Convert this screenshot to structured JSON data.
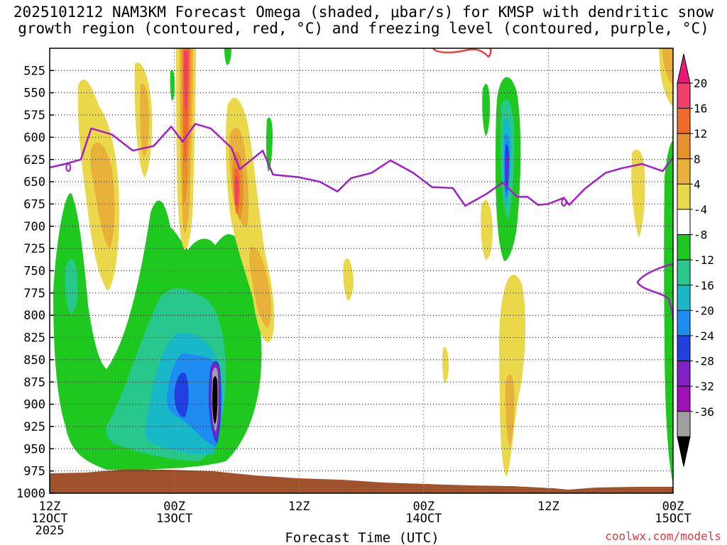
{
  "chart_data": {
    "type": "heatmap",
    "title_line1": "2025101212 NAM3KM Forecast Omega (shaded, μbar/s) for KMSP with dendritic snow",
    "title_line2": "growth region (contoured, red, °C) and freezing level (contoured, purple, °C)",
    "xlabel": "Forecast Time (UTC)",
    "credit": "coolwx.com/models",
    "y_axis": {
      "units": "hPa",
      "range": [
        500,
        1000
      ],
      "ticks": [
        "525",
        "550",
        "575",
        "600",
        "625",
        "650",
        "675",
        "700",
        "725",
        "750",
        "775",
        "800",
        "825",
        "850",
        "875",
        "900",
        "925",
        "950",
        "975",
        "1000"
      ]
    },
    "x_axis": {
      "range_hours": [
        0,
        60
      ],
      "ticks": [
        {
          "hour": 0,
          "line1": "12Z",
          "line2": "12OCT",
          "line3": "2025"
        },
        {
          "hour": 12,
          "line1": "00Z",
          "line2": "13OCT",
          "line3": ""
        },
        {
          "hour": 24,
          "line1": "12Z",
          "line2": "",
          "line3": ""
        },
        {
          "hour": 36,
          "line1": "00Z",
          "line2": "14OCT",
          "line3": ""
        },
        {
          "hour": 48,
          "line1": "12Z",
          "line2": "",
          "line3": ""
        },
        {
          "hour": 60,
          "line1": "00Z",
          "line2": "15OCT",
          "line3": ""
        }
      ]
    },
    "colorbar": {
      "labels": [
        "20",
        "16",
        "12",
        "8",
        "4",
        "-4",
        "-8",
        "-12",
        "-16",
        "-20",
        "-24",
        "-28",
        "-32",
        "-36"
      ],
      "colors": [
        "#f0406a",
        "#f26a2a",
        "#e8902a",
        "#e8b23a",
        "#ebd84a",
        "#ffffff",
        "#1ec81e",
        "#28c88c",
        "#18b8c8",
        "#1e8cf0",
        "#2040e0",
        "#8020c8",
        "#a010b8",
        "#a0a0a0"
      ],
      "over_color": "#e8187a",
      "under_color": "#000000"
    },
    "colors": {
      "freezing_level": "#a020c8",
      "dendritic_contour": "#f04040",
      "terrain": "#a0522d"
    },
    "freezing_level_hPa": [
      [
        0,
        634
      ],
      [
        1.5,
        630
      ],
      [
        3,
        625
      ],
      [
        4,
        590
      ],
      [
        6,
        597
      ],
      [
        8,
        615
      ],
      [
        10,
        610
      ],
      [
        11.7,
        588
      ],
      [
        12.8,
        605
      ],
      [
        14,
        585
      ],
      [
        15.5,
        590
      ],
      [
        17.5,
        612
      ],
      [
        18.3,
        636
      ],
      [
        20.5,
        615
      ],
      [
        21.5,
        642
      ],
      [
        24,
        645
      ],
      [
        26,
        650
      ],
      [
        27.7,
        661
      ],
      [
        29,
        646
      ],
      [
        31,
        640
      ],
      [
        32.8,
        626
      ],
      [
        35,
        640
      ],
      [
        36.8,
        656
      ],
      [
        38.8,
        657
      ],
      [
        40,
        677
      ],
      [
        42,
        664
      ],
      [
        43.6,
        651
      ],
      [
        45,
        667
      ],
      [
        46,
        667
      ],
      [
        47,
        676
      ],
      [
        48,
        675
      ],
      [
        49.5,
        668
      ],
      [
        50,
        676
      ],
      [
        51.5,
        658
      ],
      [
        53.5,
        640
      ],
      [
        55,
        635
      ],
      [
        57,
        630
      ],
      [
        59,
        638
      ],
      [
        60,
        623
      ]
    ]
  }
}
